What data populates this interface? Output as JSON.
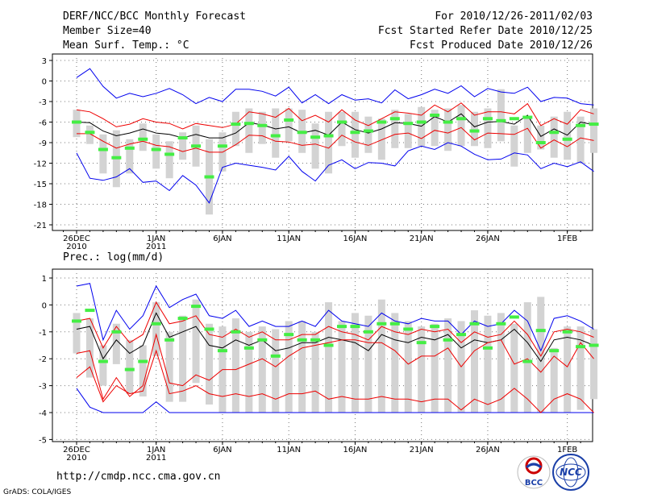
{
  "header": {
    "title": "DERF/NCC/BCC Monthly Forecast",
    "member_size": "Member Size=40",
    "variable": "Mean Surf. Temp.: °C",
    "period": "For 2010/12/26-2011/02/03",
    "started": "Fcst Started Refer Date 2010/12/25",
    "produced": "Fcst Produced Date 2010/12/26"
  },
  "footer": {
    "url": "http://cmdp.ncc.cma.gov.cn",
    "credit": "GrADS: COLA/IGES",
    "logo_bcc": "BCC",
    "logo_ncc": "NCC"
  },
  "colors": {
    "envelope": "#0000ee",
    "spread": "#ee0000",
    "mean": "#000000",
    "box": "#d3d3d3",
    "median": "#44ee44"
  },
  "chart_data": [
    {
      "type": "line",
      "title": "",
      "xlabel": "",
      "ylabel": "Mean Surf. Temp.: °C",
      "ylim": [
        -22,
        4
      ],
      "y_ticks": [
        3,
        0,
        -3,
        -6,
        -9,
        -12,
        -15,
        -18,
        -21
      ],
      "x_ticks": [
        {
          "x": 0,
          "label": "26DEC",
          "sub": "2010"
        },
        {
          "x": 6,
          "label": "1JAN",
          "sub": "2011"
        },
        {
          "x": 11,
          "label": "6JAN",
          "sub": ""
        },
        {
          "x": 16,
          "label": "11JAN",
          "sub": ""
        },
        {
          "x": 21,
          "label": "16JAN",
          "sub": ""
        },
        {
          "x": 26,
          "label": "21JAN",
          "sub": ""
        },
        {
          "x": 31,
          "label": "26JAN",
          "sub": ""
        },
        {
          "x": 37,
          "label": "1FEB",
          "sub": ""
        }
      ],
      "x_range": [
        -1,
        39
      ],
      "series": [
        {
          "name": "max",
          "color": "#0000ee",
          "values": [
            0.5,
            1.8,
            -0.8,
            -2.5,
            -1.8,
            -2.3,
            -1.8,
            -1.1,
            -2.0,
            -3.3,
            -2.4,
            -3.0,
            -1.2,
            -1.2,
            -1.5,
            -2.2,
            -0.9,
            -3.2,
            -2.0,
            -3.3,
            -2.0,
            -2.8,
            -2.6,
            -3.2,
            -1.3,
            -2.6,
            -2.0,
            -1.2,
            -1.8,
            -0.7,
            -2.3,
            -1.1,
            -1.6,
            -1.8,
            -0.9,
            -3.0,
            -2.4,
            -2.5,
            -3.3,
            -3.5
          ]
        },
        {
          "name": "upper",
          "color": "#ee0000",
          "values": [
            -4.2,
            -4.5,
            -5.5,
            -6.7,
            -6.3,
            -5.5,
            -6.0,
            -6.2,
            -7.0,
            -6.2,
            -6.5,
            -6.8,
            -6.3,
            -4.5,
            -4.8,
            -5.3,
            -4.0,
            -5.8,
            -5.0,
            -6.0,
            -4.2,
            -5.7,
            -6.5,
            -5.5,
            -4.5,
            -4.7,
            -5.0,
            -3.5,
            -4.5,
            -3.2,
            -5.0,
            -4.5,
            -4.5,
            -4.8,
            -3.3,
            -6.5,
            -5.5,
            -6.3,
            -4.2,
            -4.8
          ]
        },
        {
          "name": "mean",
          "color": "#000000",
          "values": [
            -6.0,
            -6.1,
            -7.3,
            -8.0,
            -7.6,
            -7.0,
            -7.6,
            -7.8,
            -8.3,
            -7.8,
            -8.3,
            -8.3,
            -7.6,
            -6.1,
            -6.4,
            -7.0,
            -6.7,
            -7.6,
            -7.2,
            -7.9,
            -6.0,
            -7.1,
            -7.6,
            -7.0,
            -6.1,
            -6.2,
            -6.6,
            -5.2,
            -6.0,
            -4.8,
            -6.7,
            -6.0,
            -5.9,
            -6.3,
            -5.0,
            -8.1,
            -7.0,
            -7.9,
            -6.0,
            -6.4
          ]
        },
        {
          "name": "lower",
          "color": "#ee0000",
          "values": [
            -7.7,
            -7.7,
            -8.8,
            -9.8,
            -9.2,
            -8.8,
            -9.4,
            -9.6,
            -10.3,
            -9.8,
            -10.4,
            -10.4,
            -9.3,
            -7.9,
            -8.0,
            -8.8,
            -8.9,
            -9.4,
            -9.2,
            -9.8,
            -7.9,
            -8.9,
            -9.4,
            -8.6,
            -7.8,
            -7.6,
            -8.4,
            -7.2,
            -7.6,
            -6.8,
            -8.6,
            -7.6,
            -7.7,
            -7.8,
            -6.9,
            -9.8,
            -8.6,
            -9.6,
            -8.3,
            -8.7
          ]
        },
        {
          "name": "min",
          "color": "#0000ee",
          "values": [
            -10.5,
            -14.2,
            -14.5,
            -14.0,
            -12.8,
            -14.8,
            -14.6,
            -16.0,
            -13.8,
            -15.2,
            -17.8,
            -12.6,
            -12.0,
            -12.3,
            -12.6,
            -13.0,
            -11.0,
            -13.2,
            -14.6,
            -12.3,
            -11.5,
            -12.8,
            -11.9,
            -12.0,
            -12.4,
            -10.2,
            -9.5,
            -10.0,
            -9.0,
            -9.5,
            -10.7,
            -11.5,
            -11.4,
            -10.5,
            -10.8,
            -12.8,
            -12.0,
            -12.5,
            -11.8,
            -13.2
          ]
        }
      ],
      "boxes": [
        {
          "lo": -8.2,
          "hi": -4.2
        },
        {
          "lo": -9.2,
          "hi": -6.5
        },
        {
          "lo": -13.5,
          "hi": -7.8
        },
        {
          "lo": -15.5,
          "hi": -7.2
        },
        {
          "lo": -13.5,
          "hi": -8.5
        },
        {
          "lo": -10.2,
          "hi": -6.2
        },
        {
          "lo": -12.8,
          "hi": -7.8
        },
        {
          "lo": -14.2,
          "hi": -8.8
        },
        {
          "lo": -11.5,
          "hi": -7.5
        },
        {
          "lo": -12.5,
          "hi": -6.5
        },
        {
          "lo": -19.5,
          "hi": -8.5
        },
        {
          "lo": -13.2,
          "hi": -7.5
        },
        {
          "lo": -9.5,
          "hi": -4.5
        },
        {
          "lo": -10.5,
          "hi": -4.0
        },
        {
          "lo": -9.2,
          "hi": -4.5
        },
        {
          "lo": -11.2,
          "hi": -4.0
        },
        {
          "lo": -8.8,
          "hi": -4.0
        },
        {
          "lo": -10.5,
          "hi": -4.2
        },
        {
          "lo": -12.8,
          "hi": -6.2
        },
        {
          "lo": -13.5,
          "hi": -4.5
        },
        {
          "lo": -9.5,
          "hi": -4.5
        },
        {
          "lo": -11.2,
          "hi": -4.5
        },
        {
          "lo": -10.5,
          "hi": -5.2
        },
        {
          "lo": -11.5,
          "hi": -5.5
        },
        {
          "lo": -9.8,
          "hi": -4.2
        },
        {
          "lo": -9.8,
          "hi": -4.8
        },
        {
          "lo": -9.5,
          "hi": -3.8
        },
        {
          "lo": -9.5,
          "hi": -4.2
        },
        {
          "lo": -10.2,
          "hi": -4.0
        },
        {
          "lo": -9.5,
          "hi": -3.5
        },
        {
          "lo": -9.5,
          "hi": -4.5
        },
        {
          "lo": -9.8,
          "hi": -4.0
        },
        {
          "lo": -8.8,
          "hi": -1.2
        },
        {
          "lo": -12.5,
          "hi": -6.5
        },
        {
          "lo": -10.5,
          "hi": -5.5
        },
        {
          "lo": -10.0,
          "hi": -6.5
        },
        {
          "lo": -11.2,
          "hi": -5.2
        },
        {
          "lo": -11.5,
          "hi": -4.5
        },
        {
          "lo": -12.0,
          "hi": -5.2
        },
        {
          "lo": -10.5,
          "hi": -4.0
        }
      ],
      "medians": [
        -6.0,
        -7.5,
        -10.0,
        -11.2,
        -9.8,
        -8.5,
        -10.0,
        -10.7,
        -8.3,
        -9.5,
        -14.0,
        -9.5,
        -6.3,
        -6.2,
        -6.5,
        -8.0,
        -5.7,
        -7.5,
        -8.2,
        -8.0,
        -6.0,
        -7.5,
        -7.3,
        -6.0,
        -5.5,
        -6.2,
        -6.0,
        -5.0,
        -6.0,
        -5.5,
        -7.3,
        -5.5,
        -5.8,
        -5.5,
        -5.3,
        -9.0,
        -7.5,
        -8.5,
        -6.5,
        -6.3
      ]
    },
    {
      "type": "line",
      "title": "Prec.: log(mm/d)",
      "xlabel": "",
      "ylabel": "Prec.: log(mm/d)",
      "ylim": [
        -5,
        1.2
      ],
      "y_ticks": [
        1,
        0,
        -1,
        -2,
        -3,
        -4,
        -5
      ],
      "x_ticks": [
        {
          "x": 0,
          "label": "26DEC",
          "sub": "2010"
        },
        {
          "x": 6,
          "label": "1JAN",
          "sub": "2011"
        },
        {
          "x": 11,
          "label": "6JAN",
          "sub": ""
        },
        {
          "x": 16,
          "label": "11JAN",
          "sub": ""
        },
        {
          "x": 21,
          "label": "16JAN",
          "sub": ""
        },
        {
          "x": 26,
          "label": "21JAN",
          "sub": ""
        },
        {
          "x": 31,
          "label": "26JAN",
          "sub": ""
        },
        {
          "x": 37,
          "label": "1FEB",
          "sub": ""
        }
      ],
      "x_range": [
        -1,
        39
      ],
      "series": [
        {
          "name": "max",
          "color": "#0000ee",
          "values": [
            0.7,
            0.8,
            -1.3,
            -0.2,
            -0.9,
            -0.4,
            0.7,
            -0.1,
            0.2,
            0.4,
            -0.4,
            -0.5,
            -0.2,
            -0.8,
            -0.6,
            -0.8,
            -0.8,
            -0.6,
            -0.8,
            -0.2,
            -0.6,
            -0.7,
            -0.8,
            -0.3,
            -0.6,
            -0.7,
            -0.5,
            -0.6,
            -0.6,
            -1.1,
            -0.6,
            -0.8,
            -0.7,
            -0.2,
            -0.6,
            -1.7,
            -0.5,
            -0.4,
            -0.6,
            -0.9
          ]
        },
        {
          "name": "upper",
          "color": "#ee0000",
          "values": [
            -0.6,
            -0.5,
            -1.6,
            -0.8,
            -1.4,
            -1.1,
            0.1,
            -0.7,
            -0.6,
            -0.4,
            -1.1,
            -1.2,
            -0.9,
            -1.2,
            -1.0,
            -1.3,
            -1.3,
            -1.1,
            -1.1,
            -0.8,
            -1.0,
            -1.1,
            -1.3,
            -0.8,
            -1.0,
            -1.1,
            -0.9,
            -1.0,
            -0.9,
            -1.4,
            -1.0,
            -1.2,
            -1.1,
            -0.6,
            -1.1,
            -1.9,
            -1.0,
            -0.9,
            -1.0,
            -1.2
          ]
        },
        {
          "name": "mean",
          "color": "#000000",
          "values": [
            -0.9,
            -0.8,
            -2.0,
            -1.3,
            -1.8,
            -1.5,
            -0.3,
            -1.2,
            -1.0,
            -0.8,
            -1.5,
            -1.6,
            -1.3,
            -1.5,
            -1.3,
            -1.7,
            -1.6,
            -1.4,
            -1.4,
            -1.2,
            -1.3,
            -1.4,
            -1.7,
            -1.1,
            -1.3,
            -1.4,
            -1.2,
            -1.3,
            -1.1,
            -1.6,
            -1.3,
            -1.4,
            -1.3,
            -0.9,
            -1.4,
            -2.1,
            -1.3,
            -1.2,
            -1.3,
            -1.5
          ]
        },
        {
          "name": "lower",
          "color": "#ee0000",
          "values": [
            -1.8,
            -1.7,
            -3.5,
            -2.7,
            -3.4,
            -3.0,
            -1.1,
            -2.9,
            -3.0,
            -2.6,
            -2.8,
            -2.4,
            -2.4,
            -2.2,
            -2.0,
            -2.3,
            -1.9,
            -1.6,
            -1.5,
            -1.4,
            -1.3,
            -1.3,
            -1.4,
            -1.4,
            -1.7,
            -2.2,
            -1.9,
            -1.9,
            -1.6,
            -2.3,
            -1.7,
            -1.4,
            -1.3,
            -2.2,
            -2.0,
            -2.5,
            -1.9,
            -2.3,
            -1.4,
            -2.0
          ]
        },
        {
          "name": "min",
          "color": "#0000ee",
          "values": [
            -3.1,
            -3.8,
            -4.0,
            -4.0,
            -4.0,
            -4.0,
            -3.6,
            -4.0,
            -4.0,
            -4.0,
            -4.0,
            -4.0,
            -4.0,
            -4.0,
            -4.0,
            -4.0,
            -4.0,
            -4.0,
            -4.0,
            -4.0,
            -4.0,
            -4.0,
            -4.0,
            -4.0,
            -4.0,
            -4.0,
            -4.0,
            -4.0,
            -4.0,
            -4.0,
            -4.0,
            -4.0,
            -4.0,
            -4.0,
            -4.0,
            -4.0,
            -4.0,
            -4.0,
            -4.0,
            -4.0
          ]
        },
        {
          "name": "lower2",
          "color": "#ee0000",
          "values": [
            -2.7,
            -2.3,
            -3.6,
            -3.0,
            -3.3,
            -3.2,
            -1.7,
            -3.3,
            -3.2,
            -3.0,
            -3.3,
            -3.4,
            -3.3,
            -3.4,
            -3.3,
            -3.5,
            -3.3,
            -3.3,
            -3.2,
            -3.5,
            -3.4,
            -3.5,
            -3.5,
            -3.4,
            -3.5,
            -3.5,
            -3.6,
            -3.5,
            -3.5,
            -3.9,
            -3.5,
            -3.7,
            -3.5,
            -3.1,
            -3.5,
            -4.0,
            -3.5,
            -3.3,
            -3.5,
            -4.0
          ]
        }
      ],
      "boxes": [
        {
          "lo": -1.8,
          "hi": -0.3
        },
        {
          "lo": -2.7,
          "hi": -0.5
        },
        {
          "lo": -3.0,
          "hi": -1.5
        },
        {
          "lo": -2.2,
          "hi": -0.7
        },
        {
          "lo": -3.3,
          "hi": -1.3
        },
        {
          "lo": -3.4,
          "hi": -1.5
        },
        {
          "lo": -1.9,
          "hi": 0.1
        },
        {
          "lo": -3.6,
          "hi": -1.0
        },
        {
          "lo": -3.6,
          "hi": -0.4
        },
        {
          "lo": -2.9,
          "hi": 0.2
        },
        {
          "lo": -3.7,
          "hi": -0.7
        },
        {
          "lo": -4.0,
          "hi": -0.8
        },
        {
          "lo": -4.0,
          "hi": -0.5
        },
        {
          "lo": -4.0,
          "hi": -1.0
        },
        {
          "lo": -4.0,
          "hi": -0.8
        },
        {
          "lo": -4.0,
          "hi": -0.9
        },
        {
          "lo": -4.0,
          "hi": -0.6
        },
        {
          "lo": -4.0,
          "hi": -0.6
        },
        {
          "lo": -4.0,
          "hi": -1.0
        },
        {
          "lo": -4.0,
          "hi": 0.1
        },
        {
          "lo": -4.0,
          "hi": -0.6
        },
        {
          "lo": -4.0,
          "hi": -0.3
        },
        {
          "lo": -4.0,
          "hi": -0.4
        },
        {
          "lo": -4.0,
          "hi": 0.2
        },
        {
          "lo": -4.0,
          "hi": -0.3
        },
        {
          "lo": -4.0,
          "hi": -0.6
        },
        {
          "lo": -4.0,
          "hi": -0.8
        },
        {
          "lo": -4.0,
          "hi": -0.7
        },
        {
          "lo": -4.0,
          "hi": -0.5
        },
        {
          "lo": -4.0,
          "hi": -0.6
        },
        {
          "lo": -4.0,
          "hi": -0.2
        },
        {
          "lo": -4.0,
          "hi": -0.4
        },
        {
          "lo": -4.0,
          "hi": -0.3
        },
        {
          "lo": -4.0,
          "hi": -0.7
        },
        {
          "lo": -4.0,
          "hi": 0.1
        },
        {
          "lo": -4.0,
          "hi": 0.3
        },
        {
          "lo": -4.0,
          "hi": -1.6
        },
        {
          "lo": -4.0,
          "hi": -0.8
        },
        {
          "lo": -3.9,
          "hi": -0.8
        },
        {
          "lo": -3.5,
          "hi": -0.9
        }
      ],
      "medians": [
        -0.6,
        -0.2,
        -2.1,
        -1.0,
        -2.4,
        -2.1,
        -0.7,
        -1.3,
        -0.5,
        -0.05,
        -0.9,
        -1.7,
        -1.0,
        -1.6,
        -1.3,
        -1.9,
        -1.1,
        -1.3,
        -1.3,
        -1.5,
        -0.8,
        -0.8,
        -1.0,
        -0.7,
        -0.7,
        -0.9,
        -1.4,
        -0.8,
        -1.3,
        -1.1,
        -0.7,
        -1.6,
        -0.7,
        -0.45,
        -2.1,
        -0.95,
        -1.7,
        -1.0,
        -1.55,
        -1.5
      ]
    }
  ]
}
